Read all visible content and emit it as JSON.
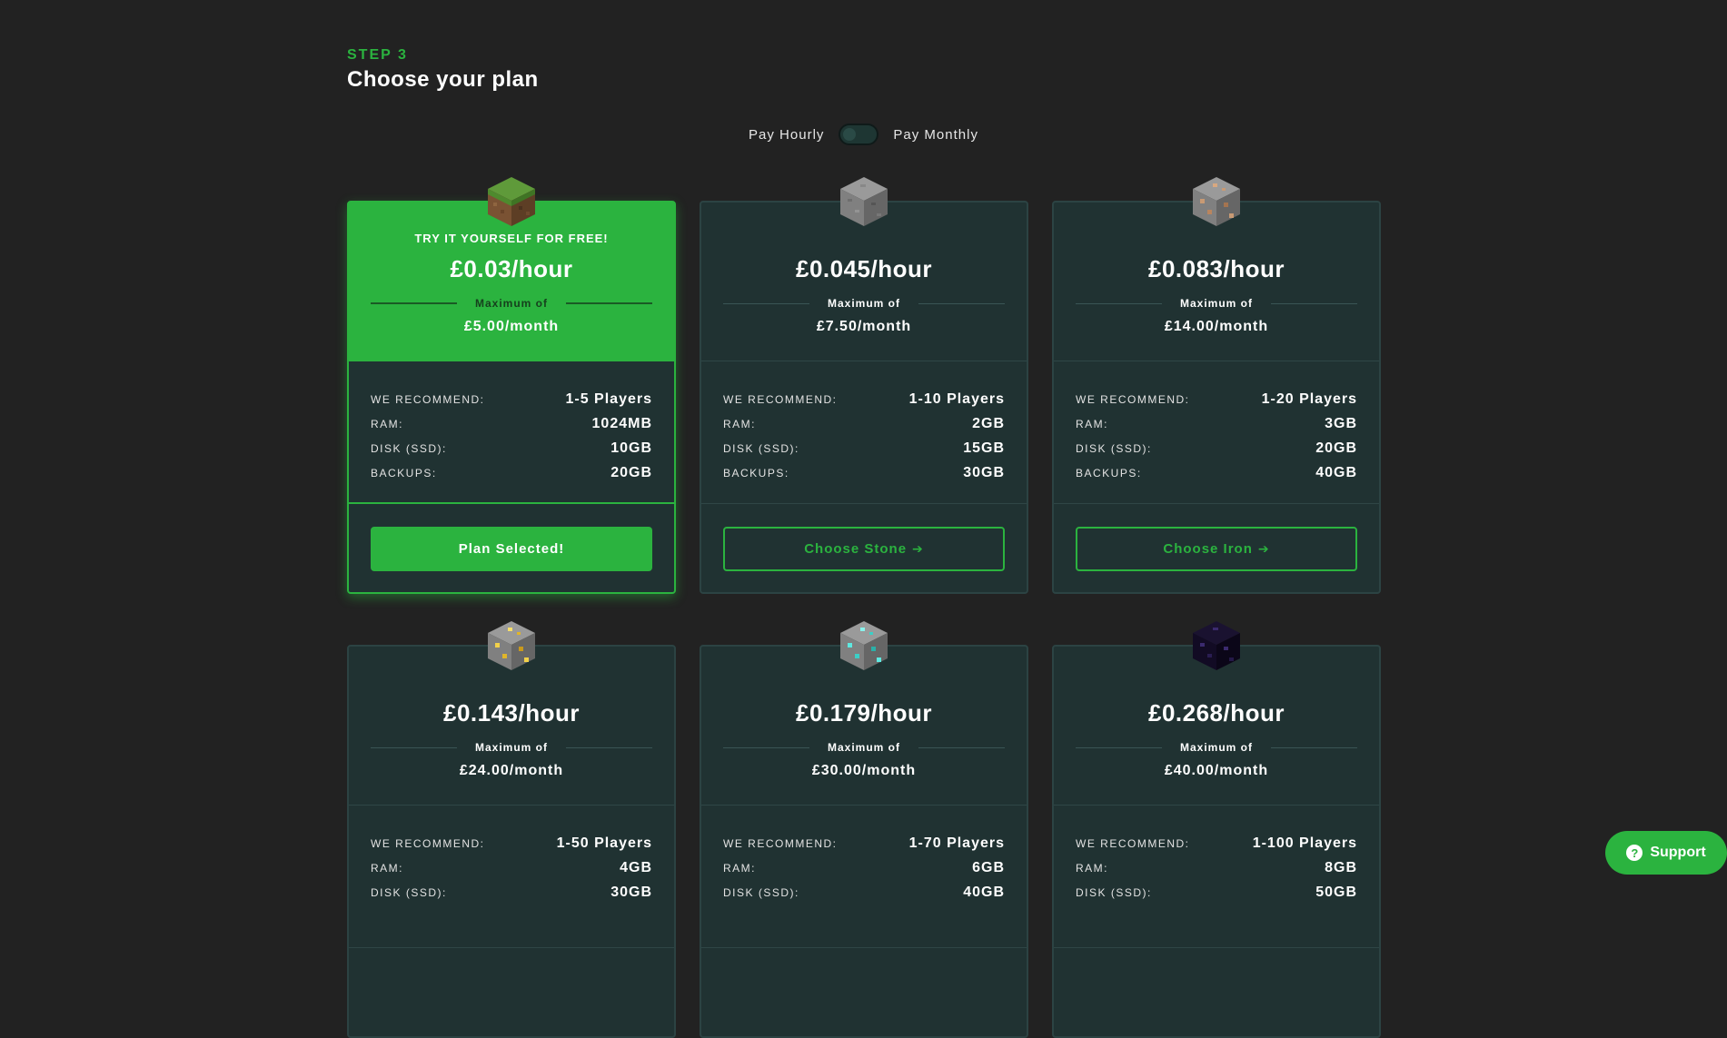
{
  "header": {
    "step": "STEP 3",
    "title": "Choose your plan"
  },
  "billing": {
    "left_label": "Pay Hourly",
    "right_label": "Pay Monthly"
  },
  "spec_labels": {
    "players": "WE RECOMMEND:",
    "ram": "RAM:",
    "disk": "DISK (SSD):",
    "backups": "BACKUPS:"
  },
  "max_label": "Maximum of",
  "plans": [
    {
      "tagline": "TRY IT YOURSELF FOR FREE!",
      "price": "£0.03/hour",
      "month": "£5.00/month",
      "players": "1-5 Players",
      "ram": "1024MB",
      "disk": "10GB",
      "backups": "20GB",
      "button": "Plan Selected!",
      "block": "grass-block-icon"
    },
    {
      "tagline": "",
      "price": "£0.045/hour",
      "month": "£7.50/month",
      "players": "1-10 Players",
      "ram": "2GB",
      "disk": "15GB",
      "backups": "30GB",
      "button": "Choose Stone",
      "block": "stone-block-icon"
    },
    {
      "tagline": "",
      "price": "£0.083/hour",
      "month": "£14.00/month",
      "players": "1-20 Players",
      "ram": "3GB",
      "disk": "20GB",
      "backups": "40GB",
      "button": "Choose Iron",
      "block": "iron-ore-block-icon"
    },
    {
      "tagline": "",
      "price": "£0.143/hour",
      "month": "£24.00/month",
      "players": "1-50 Players",
      "ram": "4GB",
      "disk": "30GB",
      "backups": "",
      "button": "",
      "block": "gold-ore-block-icon"
    },
    {
      "tagline": "",
      "price": "£0.179/hour",
      "month": "£30.00/month",
      "players": "1-70 Players",
      "ram": "6GB",
      "disk": "40GB",
      "backups": "",
      "button": "",
      "block": "diamond-ore-block-icon"
    },
    {
      "tagline": "",
      "price": "£0.268/hour",
      "month": "£40.00/month",
      "players": "1-100 Players",
      "ram": "8GB",
      "disk": "50GB",
      "backups": "",
      "button": "",
      "block": "obsidian-block-icon"
    }
  ],
  "support": {
    "label": "Support",
    "icon": "question-icon"
  },
  "colors": {
    "accent": "#2bb33f",
    "card_bg": "#203232",
    "page_bg": "#222222"
  }
}
